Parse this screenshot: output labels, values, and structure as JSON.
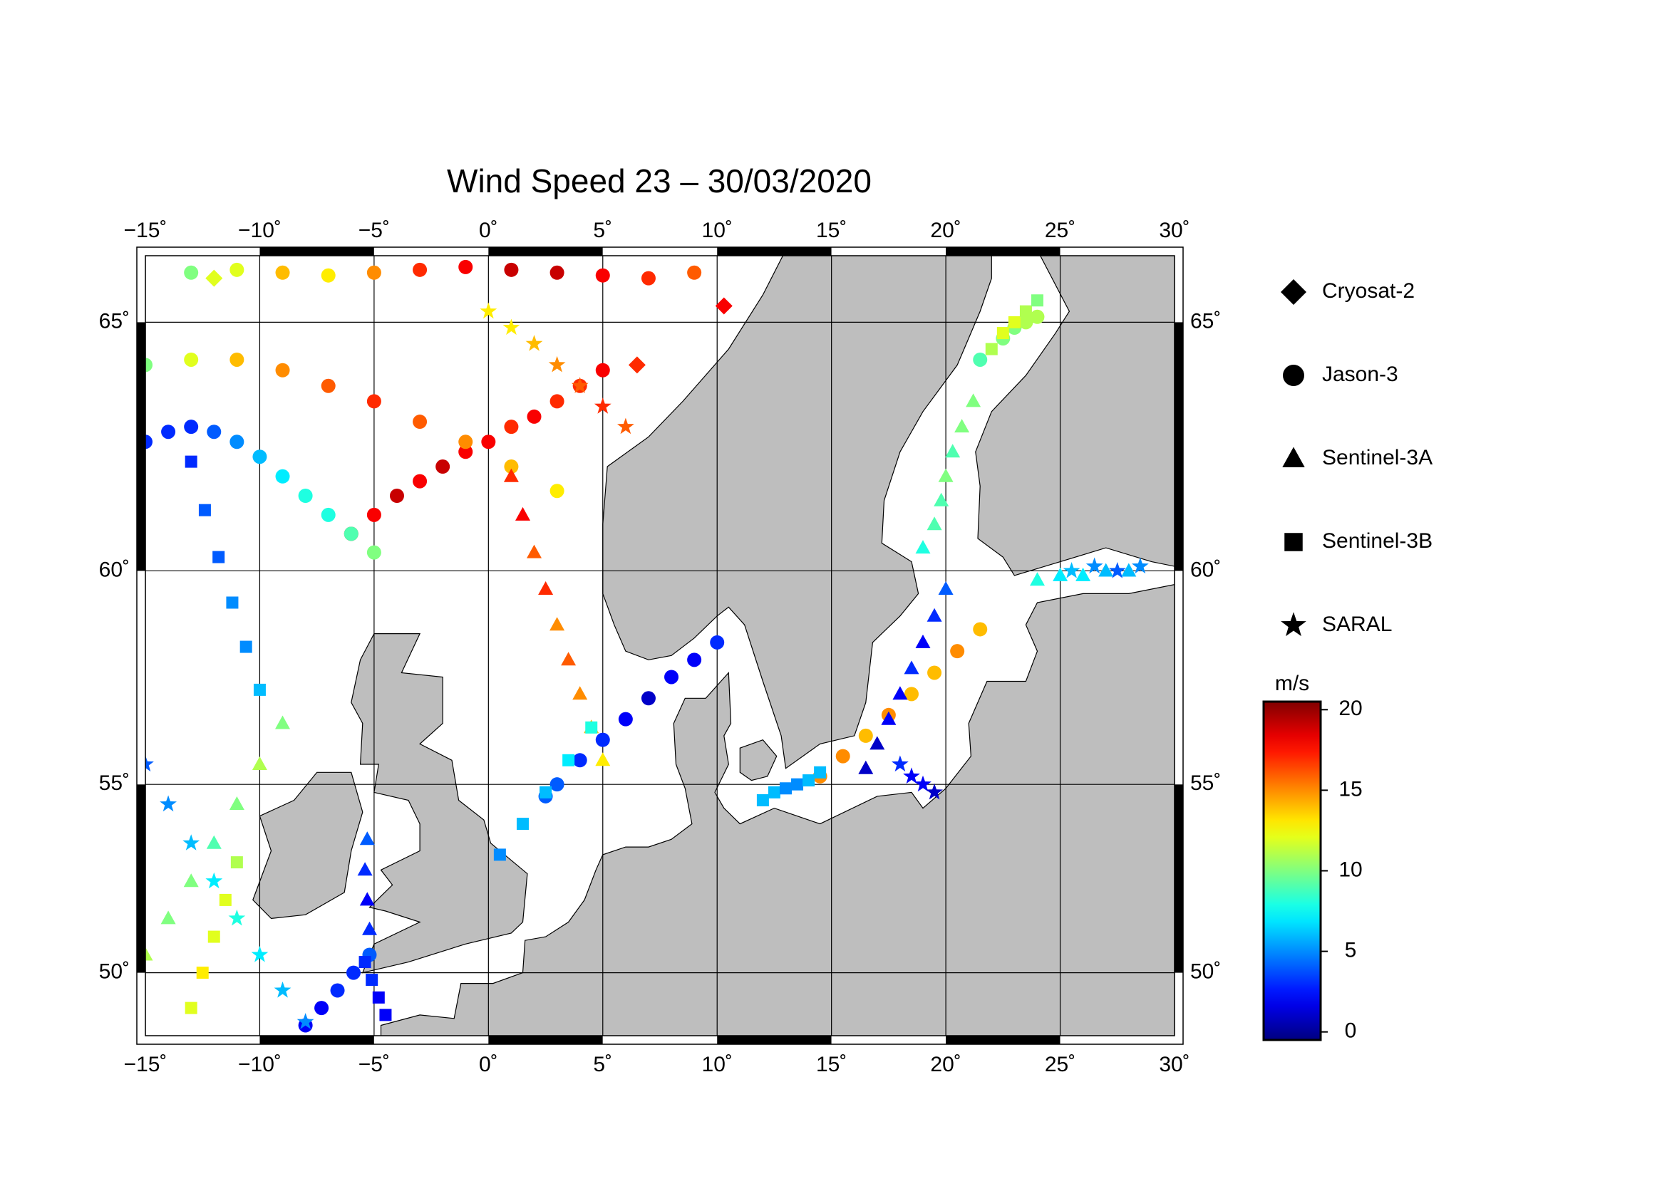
{
  "chart_data": {
    "type": "scatter",
    "title": "Wind Speed 23 – 30/03/2020",
    "projection": "mercator",
    "xlim": [
      -15,
      30
    ],
    "ylim": [
      48.2,
      66.2
    ],
    "xticks": [
      {
        "value": -15,
        "label": "−15˚"
      },
      {
        "value": -10,
        "label": "−10˚"
      },
      {
        "value": -5,
        "label": "−5˚"
      },
      {
        "value": 0,
        "label": "0˚"
      },
      {
        "value": 5,
        "label": "5˚"
      },
      {
        "value": 10,
        "label": "10˚"
      },
      {
        "value": 15,
        "label": "15˚"
      },
      {
        "value": 20,
        "label": "20˚"
      },
      {
        "value": 25,
        "label": "25˚"
      },
      {
        "value": 30,
        "label": "30˚"
      }
    ],
    "yticks": [
      {
        "value": 50,
        "label": "50˚"
      },
      {
        "value": 55,
        "label": "55˚"
      },
      {
        "value": 60,
        "label": "60˚"
      },
      {
        "value": 65,
        "label": "65˚"
      }
    ],
    "grid": true,
    "land_color": "#bebebe",
    "colormap": "jet",
    "clim": [
      -0.5,
      20.5
    ],
    "colorbar_label": "m/s",
    "colorbar_ticks": [
      0,
      5,
      10,
      15,
      20
    ],
    "legend": "right",
    "series": [
      {
        "name": "Cryosat-2",
        "marker": "diamond",
        "color": "#000000",
        "x": [
          10.3,
          6.5,
          -12
        ],
        "y": [
          65.3,
          64.2,
          65.8
        ],
        "values": [
          18,
          17,
          12
        ]
      },
      {
        "name": "Jason-3",
        "marker": "circle",
        "color": "#000000",
        "x": [
          10,
          9,
          8,
          7,
          6,
          5,
          4,
          3,
          2.5,
          14.5,
          15.5,
          16.5,
          17.5,
          18.5,
          19.5,
          20.5,
          21.5,
          -6,
          -5,
          -4,
          -3,
          -2,
          -1,
          0,
          1,
          2,
          3,
          4,
          5,
          -15,
          -14,
          -13,
          -12,
          -11,
          -10,
          -9,
          -8,
          -7,
          -6,
          -5,
          -13,
          -11,
          -9,
          -7,
          -5,
          -3,
          -1,
          1,
          3,
          5,
          7,
          9,
          -8,
          -7.3,
          -6.6,
          -5.9,
          -5.2,
          21.5,
          22.5,
          23,
          23.5,
          24,
          -15,
          -13,
          -11,
          -9,
          -7,
          -5,
          -3,
          -1,
          1,
          3
        ],
        "y": [
          58.4,
          58,
          57.6,
          57.1,
          56.6,
          56.1,
          55.6,
          55,
          54.7,
          55.2,
          55.7,
          56.2,
          56.7,
          57.2,
          57.7,
          58.2,
          58.7,
          60.8,
          61.2,
          61.6,
          61.9,
          62.2,
          62.5,
          62.7,
          63,
          63.2,
          63.5,
          63.8,
          64.1,
          62.7,
          62.9,
          63,
          62.9,
          62.7,
          62.4,
          62,
          61.6,
          61.2,
          60.8,
          60.4,
          65.9,
          65.95,
          65.9,
          65.85,
          65.9,
          65.95,
          66,
          65.95,
          65.9,
          65.85,
          65.8,
          65.9,
          48.5,
          49,
          49.5,
          50,
          50.5,
          64.3,
          64.7,
          64.9,
          65,
          65.1,
          64.2,
          64.3,
          64.3,
          64.1,
          63.8,
          63.5,
          63.1,
          62.7,
          62.2,
          61.7
        ],
        "values": [
          3,
          2,
          2,
          1,
          2,
          3,
          3,
          4,
          4,
          15,
          15,
          14,
          15,
          14,
          14,
          15,
          14,
          19,
          18,
          19,
          18,
          19,
          18,
          18,
          17,
          18,
          17,
          17,
          18,
          3,
          3,
          3,
          4,
          5,
          6,
          7,
          8,
          8,
          9,
          10,
          10,
          12,
          14,
          13,
          15,
          17,
          18,
          19,
          19,
          18,
          17,
          16,
          2,
          2,
          3,
          3,
          4,
          9,
          10,
          10,
          11,
          11,
          10,
          12,
          14,
          15,
          16,
          17,
          16,
          15,
          14,
          13
        ]
      },
      {
        "name": "Sentinel-3A",
        "marker": "triangle",
        "color": "#000000",
        "x": [
          16.5,
          17,
          17.5,
          18,
          18.5,
          19,
          19.5,
          20,
          19,
          19.5,
          19.8,
          20,
          20.3,
          20.7,
          21.2,
          -15,
          -14,
          -13,
          -12,
          -11,
          -10,
          -9,
          1,
          1.5,
          2,
          2.5,
          3,
          3.5,
          4,
          4.5,
          5,
          24,
          25,
          26,
          27,
          28,
          -5.2,
          -5.3,
          -5.4,
          -5.3
        ],
        "y": [
          55.4,
          56,
          56.6,
          57.2,
          57.8,
          58.4,
          59,
          59.6,
          60.5,
          61,
          61.5,
          62,
          62.5,
          63,
          63.5,
          50.5,
          51.5,
          52.5,
          53.5,
          54.5,
          55.5,
          56.5,
          62,
          61.2,
          60.4,
          59.6,
          58.8,
          58,
          57.2,
          56.4,
          55.6,
          59.8,
          59.9,
          59.9,
          60,
          60,
          51.2,
          52,
          52.8,
          53.6
        ],
        "values": [
          1,
          1,
          2,
          2,
          3,
          2,
          3,
          4,
          8,
          9,
          9,
          10,
          9,
          10,
          10,
          11,
          10,
          10,
          9,
          10,
          11,
          10,
          17,
          18,
          16,
          17,
          15,
          16,
          15,
          14,
          13,
          8,
          7,
          7,
          6,
          6,
          3,
          2,
          3,
          4
        ]
      },
      {
        "name": "Sentinel-3B",
        "marker": "square",
        "color": "#000000",
        "x": [
          -13,
          -12.4,
          -11.8,
          -11.2,
          -10.6,
          -10,
          0.5,
          1.5,
          2.5,
          3.5,
          4.5,
          12,
          12.5,
          13,
          13.5,
          14,
          14.5,
          -13,
          -12.5,
          -12,
          -11.5,
          -11,
          22,
          22.5,
          23,
          23.5,
          24,
          -4.5,
          -4.8,
          -5.1,
          -5.4
        ],
        "y": [
          62.3,
          61.3,
          60.3,
          59.3,
          58.3,
          57.3,
          53.2,
          54,
          54.8,
          55.6,
          56.4,
          54.6,
          54.8,
          54.9,
          55,
          55.1,
          55.3,
          49,
          50,
          51,
          52,
          53,
          64.5,
          64.8,
          65,
          65.2,
          65.4,
          48.8,
          49.3,
          49.8,
          50.3
        ],
        "values": [
          3,
          4,
          4,
          5,
          5,
          6,
          5,
          6,
          6,
          7,
          8,
          6,
          6,
          5,
          5,
          6,
          6,
          12,
          13,
          12,
          12,
          11,
          11,
          12,
          12,
          11,
          10,
          2,
          2,
          3,
          3
        ]
      },
      {
        "name": "SARAL",
        "marker": "star",
        "color": "#000000",
        "x": [
          -15,
          -14,
          -13,
          -12,
          -11,
          -10,
          -9,
          -8,
          18,
          18.5,
          19,
          19.5,
          0,
          1,
          2,
          3,
          4,
          5,
          6,
          25.5,
          26.5,
          27.5,
          28.5
        ],
        "y": [
          55.5,
          54.5,
          53.5,
          52.5,
          51.5,
          50.5,
          49.5,
          48.6,
          55.5,
          55.2,
          55,
          54.8,
          65.2,
          64.9,
          64.6,
          64.2,
          63.8,
          63.4,
          63,
          60,
          60.1,
          60,
          60.1
        ],
        "values": [
          4,
          5,
          6,
          7,
          8,
          7,
          6,
          5,
          3,
          2,
          2,
          1,
          13,
          13,
          14,
          15,
          16,
          17,
          16,
          6,
          5,
          4,
          5
        ]
      }
    ]
  }
}
